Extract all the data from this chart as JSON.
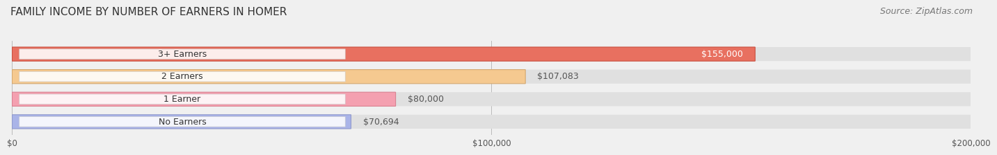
{
  "title": "FAMILY INCOME BY NUMBER OF EARNERS IN HOMER",
  "source": "Source: ZipAtlas.com",
  "categories": [
    "No Earners",
    "1 Earner",
    "2 Earners",
    "3+ Earners"
  ],
  "values": [
    70694,
    80000,
    107083,
    155000
  ],
  "bar_colors": [
    "#aab4e8",
    "#f4a0b0",
    "#f5c990",
    "#e87060"
  ],
  "bar_edge_colors": [
    "#9099cc",
    "#d98090",
    "#d4a870",
    "#c85040"
  ],
  "label_colors": [
    "#555555",
    "#555555",
    "#555555",
    "#ffffff"
  ],
  "value_labels": [
    "$70,694",
    "$80,000",
    "$107,083",
    "$155,000"
  ],
  "xlim": [
    0,
    200000
  ],
  "xticks": [
    0,
    100000,
    200000
  ],
  "xtick_labels": [
    "$0",
    "$100,000",
    "$200,000"
  ],
  "background_color": "#f0f0f0",
  "bar_background_color": "#e0e0e0",
  "title_fontsize": 11,
  "source_fontsize": 9,
  "label_fontsize": 9,
  "value_fontsize": 9
}
